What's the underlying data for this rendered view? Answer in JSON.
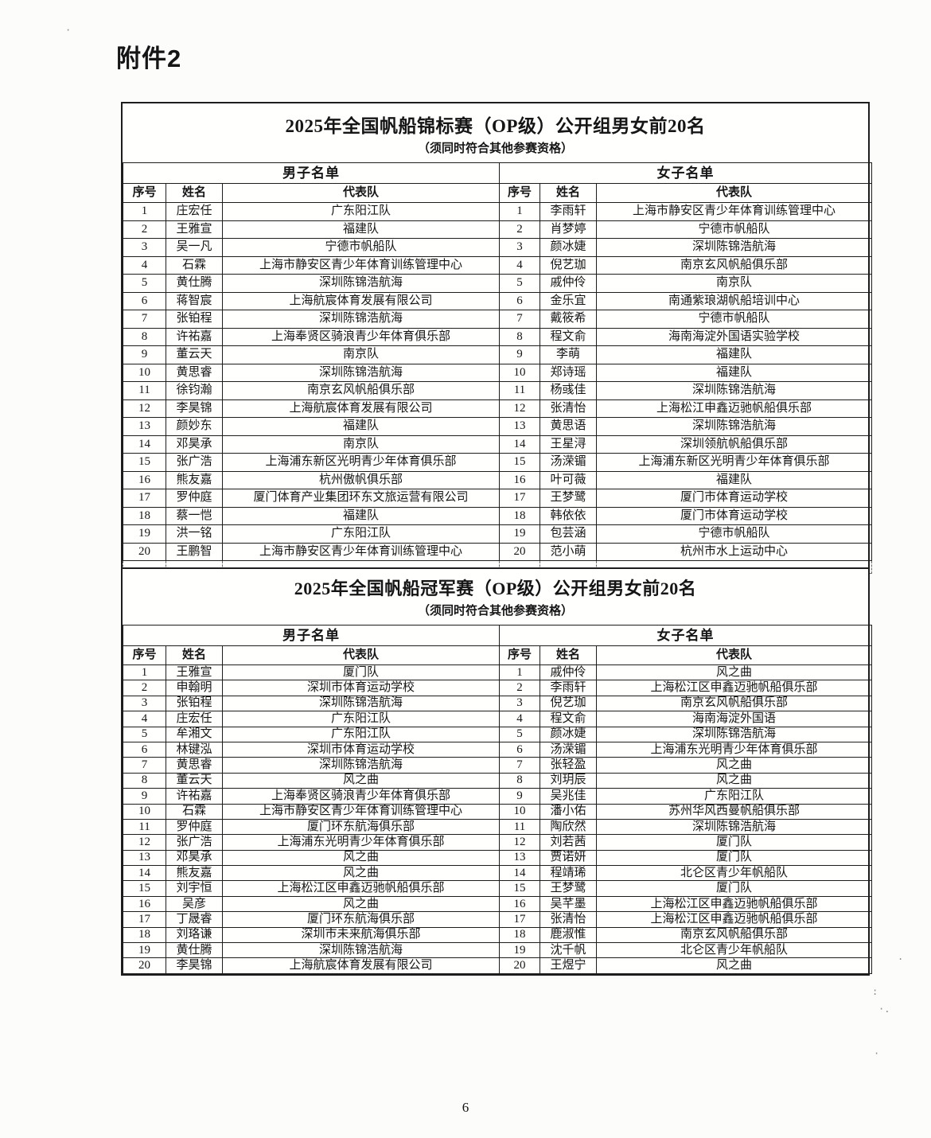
{
  "page": {
    "attachment_label": "附件2",
    "page_number": "6"
  },
  "colors": {
    "ink": "#1d1d1d",
    "paper": "#fcfcfb"
  },
  "tables": [
    {
      "title": "2025年全国帆船锦标赛（OP级）公开组男女前20名",
      "subtitle": "（须同时符合其他参赛资格）",
      "trailing_blank_row": true,
      "groups": [
        {
          "name": "男子名单",
          "columns": [
            "序号",
            "姓名",
            "代表队"
          ],
          "rows": [
            [
              "1",
              "庄宏任",
              "广东阳江队"
            ],
            [
              "2",
              "王雅宣",
              "福建队"
            ],
            [
              "3",
              "吴一凡",
              "宁德市帆船队"
            ],
            [
              "4",
              "石霖",
              "上海市静安区青少年体育训练管理中心"
            ],
            [
              "5",
              "黄仕腾",
              "深圳陈锦浩航海"
            ],
            [
              "6",
              "蒋智宸",
              "上海航宸体育发展有限公司"
            ],
            [
              "7",
              "张铂程",
              "深圳陈锦浩航海"
            ],
            [
              "8",
              "许祐嘉",
              "上海奉贤区骑浪青少年体育俱乐部"
            ],
            [
              "9",
              "董云天",
              "南京队"
            ],
            [
              "10",
              "黄思睿",
              "深圳陈锦浩航海"
            ],
            [
              "11",
              "徐钧瀚",
              "南京玄风帆船俱乐部"
            ],
            [
              "12",
              "李昊锦",
              "上海航宸体育发展有限公司"
            ],
            [
              "13",
              "颜妙东",
              "福建队"
            ],
            [
              "14",
              "邓昊承",
              "南京队"
            ],
            [
              "15",
              "张广浩",
              "上海浦东新区光明青少年体育俱乐部"
            ],
            [
              "16",
              "熊友嘉",
              "杭州傲帆俱乐部"
            ],
            [
              "17",
              "罗仲庭",
              "厦门体育产业集团环东文旅运营有限公司"
            ],
            [
              "18",
              "蔡一恺",
              "福建队"
            ],
            [
              "19",
              "洪一铭",
              "广东阳江队"
            ],
            [
              "20",
              "王鹏智",
              "上海市静安区青少年体育训练管理中心"
            ]
          ]
        },
        {
          "name": "女子名单",
          "columns": [
            "序号",
            "姓名",
            "代表队"
          ],
          "rows": [
            [
              "1",
              "李雨轩",
              "上海市静安区青少年体育训练管理中心"
            ],
            [
              "2",
              "肖梦婷",
              "宁德市帆船队"
            ],
            [
              "3",
              "颜冰婕",
              "深圳陈锦浩航海"
            ],
            [
              "4",
              "倪艺珈",
              "南京玄风帆船俱乐部"
            ],
            [
              "5",
              "戚仲伶",
              "南京队"
            ],
            [
              "6",
              "金乐宜",
              "南通紫琅湖帆船培训中心"
            ],
            [
              "7",
              "戴筱希",
              "宁德市帆船队"
            ],
            [
              "8",
              "程文俞",
              "海南海淀外国语实验学校"
            ],
            [
              "9",
              "李萌",
              "福建队"
            ],
            [
              "10",
              "郑诗瑶",
              "福建队"
            ],
            [
              "11",
              "杨彧佳",
              "深圳陈锦浩航海"
            ],
            [
              "12",
              "张清怡",
              "上海松江申鑫迈驰帆船俱乐部"
            ],
            [
              "13",
              "黄思语",
              "深圳陈锦浩航海"
            ],
            [
              "14",
              "王星浔",
              "深圳领航帆船俱乐部"
            ],
            [
              "15",
              "汤溁镅",
              "上海浦东新区光明青少年体育俱乐部"
            ],
            [
              "16",
              "叶可薇",
              "福建队"
            ],
            [
              "17",
              "王梦鹭",
              "厦门市体育运动学校"
            ],
            [
              "18",
              "韩依依",
              "厦门市体育运动学校"
            ],
            [
              "19",
              "包芸涵",
              "宁德市帆船队"
            ],
            [
              "20",
              "范小萌",
              "杭州市水上运动中心"
            ]
          ]
        }
      ]
    },
    {
      "title": "2025年全国帆船冠军赛（OP级）公开组男女前20名",
      "subtitle": "（须同时符合其他参赛资格）",
      "trailing_blank_row": false,
      "groups": [
        {
          "name": "男子名单",
          "columns": [
            "序号",
            "姓名",
            "代表队"
          ],
          "rows": [
            [
              "1",
              "王雅宣",
              "厦门队"
            ],
            [
              "2",
              "申翰明",
              "深圳市体育运动学校"
            ],
            [
              "3",
              "张铂程",
              "深圳陈锦浩航海"
            ],
            [
              "4",
              "庄宏任",
              "广东阳江队"
            ],
            [
              "5",
              "牟湘文",
              "广东阳江队"
            ],
            [
              "6",
              "林键泓",
              "深圳市体育运动学校"
            ],
            [
              "7",
              "黄思睿",
              "深圳陈锦浩航海"
            ],
            [
              "8",
              "董云天",
              "风之曲"
            ],
            [
              "9",
              "许祐嘉",
              "上海奉贤区骑浪青少年体育俱乐部"
            ],
            [
              "10",
              "石霖",
              "上海市静安区青少年体育训练管理中心"
            ],
            [
              "11",
              "罗仲庭",
              "厦门环东航海俱乐部"
            ],
            [
              "12",
              "张广浩",
              "上海浦东光明青少年体育俱乐部"
            ],
            [
              "13",
              "邓昊承",
              "风之曲"
            ],
            [
              "14",
              "熊友嘉",
              "风之曲"
            ],
            [
              "15",
              "刘宇恒",
              "上海松江区申鑫迈驰帆船俱乐部"
            ],
            [
              "16",
              "吴彦",
              "风之曲"
            ],
            [
              "17",
              "丁晟睿",
              "厦门环东航海俱乐部"
            ],
            [
              "18",
              "刘珞谦",
              "深圳市未来航海俱乐部"
            ],
            [
              "19",
              "黄仕腾",
              "深圳陈锦浩航海"
            ],
            [
              "20",
              "李昊锦",
              "上海航宸体育发展有限公司"
            ]
          ]
        },
        {
          "name": "女子名单",
          "columns": [
            "序号",
            "姓名",
            "代表队"
          ],
          "rows": [
            [
              "1",
              "戚仲伶",
              "风之曲"
            ],
            [
              "2",
              "李雨轩",
              "上海松江区申鑫迈驰帆船俱乐部"
            ],
            [
              "3",
              "倪艺珈",
              "南京玄风帆船俱乐部"
            ],
            [
              "4",
              "程文俞",
              "海南海淀外国语"
            ],
            [
              "5",
              "颜冰婕",
              "深圳陈锦浩航海"
            ],
            [
              "6",
              "汤溁镅",
              "上海浦东光明青少年体育俱乐部"
            ],
            [
              "7",
              "张轻盈",
              "风之曲"
            ],
            [
              "8",
              "刘玥辰",
              "风之曲"
            ],
            [
              "9",
              "吴兆佳",
              "广东阳江队"
            ],
            [
              "10",
              "潘小佑",
              "苏州华风西曼帆船俱乐部"
            ],
            [
              "11",
              "陶欣然",
              "深圳陈锦浩航海"
            ],
            [
              "12",
              "刘若茜",
              "厦门队"
            ],
            [
              "13",
              "贾诺妍",
              "厦门队"
            ],
            [
              "14",
              "程靖琋",
              "北仑区青少年帆船队"
            ],
            [
              "15",
              "王梦鹭",
              "厦门队"
            ],
            [
              "16",
              "吴芊墨",
              "上海松江区申鑫迈驰帆船俱乐部"
            ],
            [
              "17",
              "张清怡",
              "上海松江区申鑫迈驰帆船俱乐部"
            ],
            [
              "18",
              "鹿淑惟",
              "南京玄风帆船俱乐部"
            ],
            [
              "19",
              "沈千帆",
              "北仑区青少年帆船队"
            ],
            [
              "20",
              "王煜宁",
              "风之曲"
            ]
          ]
        }
      ]
    }
  ]
}
